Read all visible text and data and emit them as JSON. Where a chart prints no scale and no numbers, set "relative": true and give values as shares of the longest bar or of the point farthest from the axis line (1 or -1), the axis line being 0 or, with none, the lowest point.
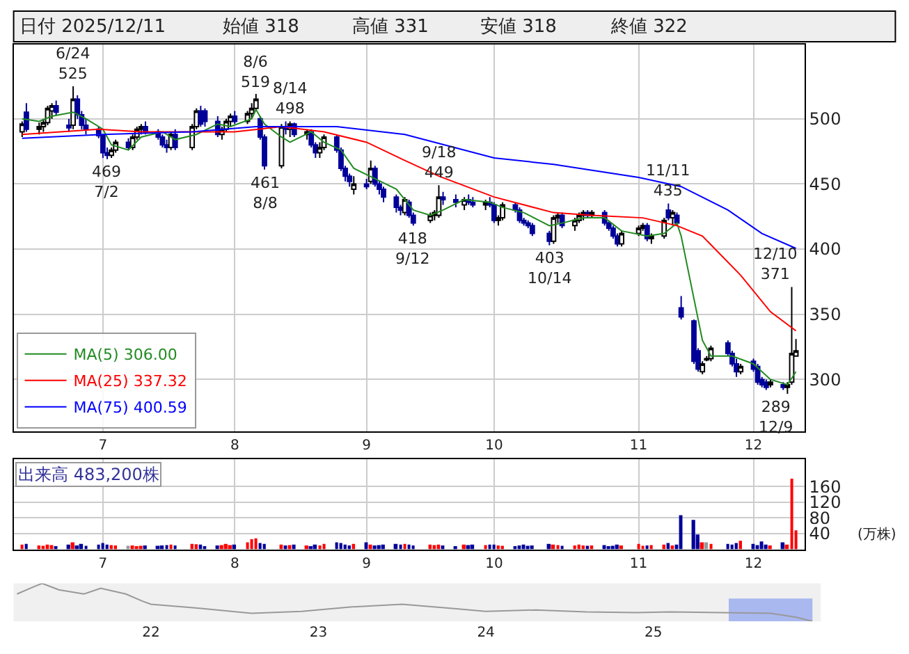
{
  "chart_data": [
    {
      "type": "candlestick",
      "annotations": [
        "日付 2025/12/11",
        "始値 318",
        "高値 331",
        "安値 318",
        "終値 322",
        {
          "text": "6/24\n525",
          "x": "2025-06-24",
          "y": 525
        },
        {
          "text": "469\n7/2",
          "x": "2025-07-02",
          "y": 469
        },
        {
          "text": "8/6\n519",
          "x": "2025-08-06",
          "y": 519
        },
        {
          "text": "461\n8/8",
          "x": "2025-08-08",
          "y": 461
        },
        {
          "text": "8/14\n498",
          "x": "2025-08-14",
          "y": 498
        },
        {
          "text": "9/18\n449",
          "x": "2025-09-18",
          "y": 449
        },
        {
          "text": "418\n9/12",
          "x": "2025-09-12",
          "y": 418
        },
        {
          "text": "403\n10/14",
          "x": "2025-10-14",
          "y": 403
        },
        {
          "text": "11/11\n435",
          "x": "2025-11-11",
          "y": 435
        },
        {
          "text": "12/10\n371",
          "x": "2025-12-10",
          "y": 371
        },
        {
          "text": "289\n12/9",
          "x": "2025-12-09",
          "y": 289
        }
      ],
      "x": [
        "2025-06-12",
        "2025-06-13",
        "2025-06-16",
        "2025-06-17",
        "2025-06-18",
        "2025-06-19",
        "2025-06-20",
        "2025-06-23",
        "2025-06-24",
        "2025-06-25",
        "2025-06-26",
        "2025-06-27",
        "2025-06-30",
        "2025-07-01",
        "2025-07-02",
        "2025-07-03",
        "2025-07-04",
        "2025-07-07",
        "2025-07-08",
        "2025-07-09",
        "2025-07-10",
        "2025-07-11",
        "2025-07-14",
        "2025-07-15",
        "2025-07-16",
        "2025-07-17",
        "2025-07-18",
        "2025-07-22",
        "2025-07-23",
        "2025-07-24",
        "2025-07-25",
        "2025-07-28",
        "2025-07-29",
        "2025-07-30",
        "2025-07-31",
        "2025-08-01",
        "2025-08-04",
        "2025-08-05",
        "2025-08-06",
        "2025-08-07",
        "2025-08-08",
        "2025-08-12",
        "2025-08-13",
        "2025-08-14",
        "2025-08-15",
        "2025-08-18",
        "2025-08-19",
        "2025-08-20",
        "2025-08-21",
        "2025-08-22",
        "2025-08-25",
        "2025-08-26",
        "2025-08-27",
        "2025-08-28",
        "2025-08-29",
        "2025-09-01",
        "2025-09-02",
        "2025-09-03",
        "2025-09-04",
        "2025-09-05",
        "2025-09-08",
        "2025-09-09",
        "2025-09-10",
        "2025-09-11",
        "2025-09-12",
        "2025-09-16",
        "2025-09-17",
        "2025-09-18",
        "2025-09-19",
        "2025-09-22",
        "2025-09-24",
        "2025-09-25",
        "2025-09-26",
        "2025-09-29",
        "2025-09-30",
        "2025-10-01",
        "2025-10-02",
        "2025-10-03",
        "2025-10-06",
        "2025-10-07",
        "2025-10-08",
        "2025-10-09",
        "2025-10-10",
        "2025-10-14",
        "2025-10-15",
        "2025-10-16",
        "2025-10-17",
        "2025-10-20",
        "2025-10-21",
        "2025-10-22",
        "2025-10-23",
        "2025-10-24",
        "2025-10-27",
        "2025-10-28",
        "2025-10-29",
        "2025-10-30",
        "2025-10-31",
        "2025-11-04",
        "2025-11-05",
        "2025-11-06",
        "2025-11-07",
        "2025-11-10",
        "2025-11-11",
        "2025-11-12",
        "2025-11-13",
        "2025-11-14",
        "2025-11-17",
        "2025-11-18",
        "2025-11-19",
        "2025-11-20",
        "2025-11-21",
        "2025-11-25",
        "2025-11-26",
        "2025-11-27",
        "2025-11-28",
        "2025-12-01",
        "2025-12-02",
        "2025-12-03",
        "2025-12-04",
        "2025-12-05",
        "2025-12-08",
        "2025-12-09",
        "2025-12-10",
        "2025-12-11"
      ],
      "ohlc": [
        [
          490,
          498,
          486,
          496
        ],
        [
          505,
          512,
          490,
          492
        ],
        [
          492,
          497,
          488,
          494
        ],
        [
          494,
          500,
          490,
          497
        ],
        [
          497,
          510,
          495,
          508
        ],
        [
          506,
          512,
          500,
          510
        ],
        [
          510,
          514,
          503,
          505
        ],
        [
          495,
          500,
          490,
          493
        ],
        [
          495,
          525,
          492,
          515
        ],
        [
          515,
          518,
          500,
          503
        ],
        [
          503,
          506,
          492,
          495
        ],
        [
          495,
          500,
          488,
          492
        ],
        [
          492,
          494,
          485,
          487
        ],
        [
          487,
          488,
          470,
          474
        ],
        [
          474,
          478,
          469,
          472
        ],
        [
          472,
          478,
          470,
          476
        ],
        [
          476,
          484,
          474,
          482
        ],
        [
          482,
          485,
          476,
          478
        ],
        [
          478,
          488,
          476,
          486
        ],
        [
          486,
          494,
          484,
          492
        ],
        [
          492,
          496,
          488,
          494
        ],
        [
          494,
          498,
          488,
          490
        ],
        [
          490,
          492,
          484,
          486
        ],
        [
          486,
          488,
          478,
          480
        ],
        [
          480,
          484,
          474,
          478
        ],
        [
          478,
          490,
          476,
          488
        ],
        [
          488,
          492,
          476,
          478
        ],
        [
          478,
          496,
          476,
          494
        ],
        [
          494,
          508,
          492,
          506
        ],
        [
          506,
          510,
          494,
          496
        ],
        [
          506,
          508,
          494,
          498
        ],
        [
          498,
          502,
          486,
          488
        ],
        [
          488,
          494,
          484,
          492
        ],
        [
          492,
          500,
          490,
          498
        ],
        [
          498,
          504,
          494,
          502
        ],
        [
          502,
          506,
          496,
          498
        ],
        [
          498,
          506,
          496,
          504
        ],
        [
          504,
          512,
          500,
          508
        ],
        [
          508,
          519,
          506,
          515
        ],
        [
          500,
          502,
          484,
          486
        ],
        [
          486,
          488,
          461,
          464
        ],
        [
          464,
          496,
          462,
          494
        ],
        [
          494,
          498,
          488,
          492
        ],
        [
          492,
          498,
          486,
          496
        ],
        [
          496,
          497,
          486,
          488
        ],
        [
          488,
          492,
          484,
          490
        ],
        [
          490,
          492,
          478,
          480
        ],
        [
          480,
          482,
          470,
          474
        ],
        [
          474,
          482,
          470,
          478
        ],
        [
          478,
          488,
          476,
          486
        ],
        [
          486,
          487,
          474,
          476
        ],
        [
          476,
          478,
          460,
          462
        ],
        [
          462,
          464,
          452,
          456
        ],
        [
          456,
          458,
          448,
          452
        ],
        [
          446,
          456,
          442,
          450
        ],
        [
          450,
          454,
          446,
          448
        ],
        [
          452,
          468,
          450,
          462
        ],
        [
          462,
          464,
          448,
          450
        ],
        [
          450,
          452,
          442,
          446
        ],
        [
          446,
          448,
          436,
          440
        ],
        [
          440,
          442,
          428,
          432
        ],
        [
          432,
          434,
          426,
          430
        ],
        [
          428,
          440,
          426,
          438
        ],
        [
          436,
          438,
          424,
          426
        ],
        [
          426,
          428,
          418,
          420
        ],
        [
          422,
          428,
          420,
          426
        ],
        [
          426,
          430,
          422,
          428
        ],
        [
          426,
          449,
          424,
          440
        ],
        [
          440,
          444,
          434,
          438
        ],
        [
          438,
          442,
          432,
          436
        ],
        [
          434,
          440,
          430,
          438
        ],
        [
          438,
          442,
          434,
          436
        ],
        [
          436,
          440,
          432,
          434
        ],
        [
          434,
          438,
          430,
          436
        ],
        [
          436,
          440,
          432,
          434
        ],
        [
          434,
          436,
          420,
          422
        ],
        [
          422,
          426,
          418,
          424
        ],
        [
          424,
          436,
          422,
          434
        ],
        [
          434,
          436,
          428,
          430
        ],
        [
          430,
          432,
          420,
          422
        ],
        [
          422,
          424,
          418,
          420
        ],
        [
          420,
          422,
          416,
          418
        ],
        [
          418,
          420,
          410,
          412
        ],
        [
          412,
          414,
          403,
          406
        ],
        [
          406,
          426,
          404,
          424
        ],
        [
          424,
          428,
          420,
          426
        ],
        [
          426,
          428,
          416,
          418
        ],
        [
          418,
          424,
          414,
          422
        ],
        [
          422,
          428,
          420,
          426
        ],
        [
          426,
          430,
          422,
          428
        ],
        [
          428,
          430,
          424,
          426
        ],
        [
          426,
          430,
          424,
          428
        ],
        [
          428,
          430,
          418,
          420
        ],
        [
          420,
          422,
          414,
          416
        ],
        [
          416,
          418,
          408,
          410
        ],
        [
          410,
          412,
          402,
          404
        ],
        [
          404,
          414,
          402,
          412
        ],
        [
          412,
          418,
          410,
          416
        ],
        [
          416,
          420,
          414,
          418
        ],
        [
          418,
          420,
          406,
          408
        ],
        [
          408,
          412,
          404,
          410
        ],
        [
          410,
          424,
          408,
          422
        ],
        [
          430,
          435,
          422,
          424
        ],
        [
          424,
          430,
          418,
          428
        ],
        [
          426,
          428,
          418,
          420
        ],
        [
          355,
          364,
          346,
          348
        ],
        [
          345,
          346,
          312,
          314
        ],
        [
          322,
          324,
          306,
          308
        ],
        [
          306,
          314,
          304,
          312
        ],
        [
          315,
          318,
          314,
          316
        ],
        [
          316,
          326,
          314,
          324
        ],
        [
          328,
          330,
          318,
          320
        ],
        [
          320,
          322,
          310,
          312
        ],
        [
          312,
          316,
          302,
          306
        ],
        [
          306,
          312,
          304,
          310
        ],
        [
          314,
          316,
          306,
          308
        ],
        [
          310,
          312,
          296,
          298
        ],
        [
          300,
          302,
          294,
          296
        ],
        [
          298,
          300,
          292,
          294
        ],
        [
          296,
          300,
          294,
          298
        ],
        [
          296,
          298,
          292,
          294
        ],
        [
          294,
          298,
          289,
          296
        ],
        [
          298,
          371,
          296,
          320
        ],
        [
          318,
          331,
          318,
          322
        ]
      ],
      "series": [
        {
          "type": "line",
          "name": "MA(5) 306.00",
          "color": "#228b22",
          "x": [
            "2025-06-12",
            "2025-06-16",
            "2025-06-19",
            "2025-06-24",
            "2025-06-27",
            "2025-07-01",
            "2025-07-03",
            "2025-07-07",
            "2025-07-10",
            "2025-07-15",
            "2025-07-18",
            "2025-07-23",
            "2025-07-28",
            "2025-07-31",
            "2025-08-05",
            "2025-08-06",
            "2025-08-08",
            "2025-08-12",
            "2025-08-14",
            "2025-08-19",
            "2025-08-22",
            "2025-08-26",
            "2025-08-29",
            "2025-09-03",
            "2025-09-08",
            "2025-09-12",
            "2025-09-16",
            "2025-09-19",
            "2025-09-24",
            "2025-09-30",
            "2025-10-03",
            "2025-10-08",
            "2025-10-14",
            "2025-10-17",
            "2025-10-22",
            "2025-10-27",
            "2025-10-31",
            "2025-11-06",
            "2025-11-10",
            "2025-11-13",
            "2025-11-14",
            "2025-11-19",
            "2025-11-21",
            "2025-11-26",
            "2025-12-01",
            "2025-12-05",
            "2025-12-09",
            "2025-12-11"
          ],
          "values": [
            500,
            498,
            502,
            505,
            500,
            492,
            480,
            476,
            486,
            490,
            484,
            488,
            496,
            494,
            500,
            507,
            496,
            486,
            482,
            490,
            482,
            476,
            462,
            454,
            446,
            430,
            426,
            430,
            438,
            436,
            432,
            428,
            418,
            420,
            424,
            424,
            414,
            410,
            412,
            420,
            410,
            330,
            318,
            318,
            312,
            300,
            296,
            306
          ]
        },
        {
          "type": "line",
          "name": "MA(25) 337.32",
          "color": "#ff0000",
          "x": [
            "2025-06-12",
            "2025-06-30",
            "2025-07-10",
            "2025-08-01",
            "2025-08-12",
            "2025-08-22",
            "2025-09-01",
            "2025-09-10",
            "2025-09-18",
            "2025-10-01",
            "2025-10-15",
            "2025-10-24",
            "2025-11-05",
            "2025-11-13",
            "2025-11-19",
            "2025-11-28",
            "2025-12-05",
            "2025-12-11"
          ],
          "values": [
            488,
            492,
            490,
            490,
            494,
            490,
            482,
            468,
            456,
            440,
            428,
            426,
            424,
            418,
            410,
            380,
            352,
            337.32
          ]
        },
        {
          "type": "line",
          "name": "MA(75) 400.59",
          "color": "#0000ff",
          "x": [
            "2025-06-12",
            "2025-07-01",
            "2025-07-22",
            "2025-08-06",
            "2025-08-25",
            "2025-09-10",
            "2025-10-01",
            "2025-10-15",
            "2025-11-04",
            "2025-11-14",
            "2025-11-25",
            "2025-12-03",
            "2025-12-11"
          ],
          "values": [
            485,
            488,
            490,
            494,
            494,
            488,
            470,
            465,
            455,
            448,
            430,
            412,
            400.59
          ]
        }
      ],
      "ylim": [
        260,
        557
      ],
      "yticks": [
        300,
        350,
        400,
        450,
        500
      ],
      "xlim": [
        "2025-06-10",
        "2025-12-13"
      ],
      "xticks": [
        {
          "value": "2025-07-01",
          "label": "7"
        },
        {
          "value": "2025-08-01",
          "label": "8"
        },
        {
          "value": "2025-09-01",
          "label": "9"
        },
        {
          "value": "2025-10-01",
          "label": "10"
        },
        {
          "value": "2025-11-04",
          "label": "11"
        },
        {
          "value": "2025-12-01",
          "label": "12"
        }
      ],
      "grid": true,
      "legend": "bottom left"
    },
    {
      "type": "bar",
      "annotations": [
        "出来高 483,200株"
      ],
      "ylabel": "(万株)",
      "x": [
        "2025-06-12",
        "2025-06-13",
        "2025-06-16",
        "2025-06-17",
        "2025-06-18",
        "2025-06-19",
        "2025-06-20",
        "2025-06-23",
        "2025-06-24",
        "2025-06-25",
        "2025-06-26",
        "2025-06-27",
        "2025-06-30",
        "2025-07-01",
        "2025-07-02",
        "2025-07-03",
        "2025-07-04",
        "2025-07-07",
        "2025-07-08",
        "2025-07-09",
        "2025-07-10",
        "2025-07-11",
        "2025-07-14",
        "2025-07-15",
        "2025-07-16",
        "2025-07-17",
        "2025-07-18",
        "2025-07-22",
        "2025-07-23",
        "2025-07-24",
        "2025-07-25",
        "2025-07-28",
        "2025-07-29",
        "2025-07-30",
        "2025-07-31",
        "2025-08-01",
        "2025-08-04",
        "2025-08-05",
        "2025-08-06",
        "2025-08-07",
        "2025-08-08",
        "2025-08-12",
        "2025-08-13",
        "2025-08-14",
        "2025-08-15",
        "2025-08-18",
        "2025-08-19",
        "2025-08-20",
        "2025-08-21",
        "2025-08-22",
        "2025-08-25",
        "2025-08-26",
        "2025-08-27",
        "2025-08-28",
        "2025-08-29",
        "2025-09-01",
        "2025-09-02",
        "2025-09-03",
        "2025-09-04",
        "2025-09-05",
        "2025-09-08",
        "2025-09-09",
        "2025-09-10",
        "2025-09-11",
        "2025-09-12",
        "2025-09-16",
        "2025-09-17",
        "2025-09-18",
        "2025-09-19",
        "2025-09-22",
        "2025-09-24",
        "2025-09-25",
        "2025-09-26",
        "2025-09-29",
        "2025-09-30",
        "2025-10-01",
        "2025-10-02",
        "2025-10-03",
        "2025-10-06",
        "2025-10-07",
        "2025-10-08",
        "2025-10-09",
        "2025-10-10",
        "2025-10-14",
        "2025-10-15",
        "2025-10-16",
        "2025-10-17",
        "2025-10-20",
        "2025-10-21",
        "2025-10-22",
        "2025-10-23",
        "2025-10-24",
        "2025-10-27",
        "2025-10-28",
        "2025-10-29",
        "2025-10-30",
        "2025-10-31",
        "2025-11-04",
        "2025-11-05",
        "2025-11-06",
        "2025-11-07",
        "2025-11-10",
        "2025-11-11",
        "2025-11-12",
        "2025-11-13",
        "2025-11-14",
        "2025-11-17",
        "2025-11-18",
        "2025-11-19",
        "2025-11-20",
        "2025-11-21",
        "2025-11-25",
        "2025-11-26",
        "2025-11-27",
        "2025-11-28",
        "2025-12-01",
        "2025-12-02",
        "2025-12-03",
        "2025-12-04",
        "2025-12-05",
        "2025-12-08",
        "2025-12-09",
        "2025-12-10",
        "2025-12-11"
      ],
      "values": [
        12,
        14,
        10,
        9,
        12,
        11,
        8,
        12,
        18,
        10,
        14,
        9,
        12,
        16,
        12,
        11,
        10,
        9,
        10,
        8,
        9,
        10,
        9,
        10,
        11,
        12,
        10,
        14,
        13,
        12,
        8,
        10,
        11,
        14,
        11,
        12,
        18,
        26,
        28,
        16,
        14,
        12,
        10,
        11,
        12,
        10,
        8,
        12,
        10,
        14,
        18,
        16,
        12,
        10,
        14,
        18,
        12,
        10,
        11,
        12,
        14,
        12,
        14,
        12,
        10,
        12,
        11,
        12,
        10,
        8,
        12,
        11,
        12,
        11,
        12,
        12,
        10,
        9,
        8,
        10,
        12,
        9,
        10,
        14,
        12,
        11,
        9,
        10,
        12,
        10,
        9,
        10,
        11,
        8,
        9,
        12,
        10,
        14,
        9,
        10,
        11,
        12,
        16,
        10,
        12,
        87,
        75,
        38,
        18,
        18,
        14,
        14,
        12,
        16,
        22,
        14,
        11,
        20,
        12,
        10,
        18,
        12,
        180,
        48.32
      ],
      "colors": [
        "#ff0000",
        "#000099",
        "#ff0000",
        "#ff0000",
        "#ff0000",
        "#ff0000",
        "#000099",
        "#000099",
        "#ff0000",
        "#000099",
        "#000099",
        "#000099",
        "#000099",
        "#000099",
        "#000099",
        "#ff0000",
        "#ff0000",
        "#999999",
        "#ff0000",
        "#ff0000",
        "#ff0000",
        "#000099",
        "#000099",
        "#000099",
        "#000099",
        "#ff0000",
        "#000099",
        "#ff0000",
        "#ff0000",
        "#000099",
        "#000099",
        "#000099",
        "#ff0000",
        "#ff0000",
        "#ff0000",
        "#000099",
        "#ff0000",
        "#ff0000",
        "#ff0000",
        "#000099",
        "#000099",
        "#ff0000",
        "#000099",
        "#ff0000",
        "#000099",
        "#ff0000",
        "#000099",
        "#000099",
        "#ff0000",
        "#ff0000",
        "#000099",
        "#000099",
        "#000099",
        "#000099",
        "#ff0000",
        "#000099",
        "#ff0000",
        "#000099",
        "#000099",
        "#000099",
        "#000099",
        "#000099",
        "#ff0000",
        "#000099",
        "#000099",
        "#ff0000",
        "#ff0000",
        "#ff0000",
        "#000099",
        "#000099",
        "#ff0000",
        "#000099",
        "#000099",
        "#ff0000",
        "#000099",
        "#000099",
        "#ff0000",
        "#ff0000",
        "#000099",
        "#000099",
        "#000099",
        "#000099",
        "#000099",
        "#000099",
        "#ff0000",
        "#ff0000",
        "#000099",
        "#ff0000",
        "#ff0000",
        "#ff0000",
        "#000099",
        "#ff0000",
        "#000099",
        "#000099",
        "#000099",
        "#000099",
        "#ff0000",
        "#ff0000",
        "#ff0000",
        "#000099",
        "#ff0000",
        "#ff0000",
        "#000099",
        "#ff0000",
        "#000099",
        "#000099",
        "#000099",
        "#000099",
        "#ff0000",
        "#999999",
        "#ff0000",
        "#000099",
        "#000099",
        "#000099",
        "#ff0000",
        "#000099",
        "#000099",
        "#000099",
        "#000099",
        "#ff0000",
        "#000099",
        "#ff0000",
        "#ff0000",
        "#ff0000"
      ],
      "ylim": [
        0,
        230
      ],
      "yticks": [
        40,
        80,
        120,
        160
      ],
      "xlim": [
        "2025-06-10",
        "2025-12-13"
      ],
      "xticks": [
        {
          "value": "2025-07-01",
          "label": "7"
        },
        {
          "value": "2025-08-01",
          "label": "8"
        },
        {
          "value": "2025-09-01",
          "label": "9"
        },
        {
          "value": "2025-10-01",
          "label": "10"
        },
        {
          "value": "2025-11-04",
          "label": "11"
        },
        {
          "value": "2025-12-01",
          "label": "12"
        }
      ],
      "grid": true
    },
    {
      "type": "line",
      "relative": true,
      "tick_labels": "x",
      "x": [
        2021.2,
        2021.3,
        2021.35,
        2021.45,
        2021.6,
        2021.7,
        2021.85,
        2021.95,
        2022.0,
        2022.3,
        2022.6,
        2022.9,
        2023.2,
        2023.5,
        2023.8,
        2024.0,
        2024.3,
        2024.6,
        2024.9,
        2025.1,
        2025.4,
        2025.7,
        2025.85,
        2025.95
      ],
      "series": [
        {
          "color": "#999999",
          "values": [
            0.72,
            0.91,
            1.0,
            0.83,
            0.72,
            0.87,
            0.72,
            0.53,
            0.45,
            0.34,
            0.21,
            0.26,
            0.38,
            0.45,
            0.34,
            0.26,
            0.3,
            0.25,
            0.23,
            0.25,
            0.23,
            0.21,
            0.11,
            0
          ]
        }
      ],
      "xlim": [
        2021.18,
        2026.0
      ],
      "xticks": [
        {
          "value": 2022,
          "label": "22"
        },
        {
          "value": 2023,
          "label": "23"
        },
        {
          "value": 2024,
          "label": "24"
        },
        {
          "value": 2025,
          "label": "25"
        }
      ],
      "bands": [
        {
          "axis": "x",
          "from": 2025.45,
          "to": 2025.95,
          "color": "#aab8f0"
        }
      ]
    }
  ]
}
